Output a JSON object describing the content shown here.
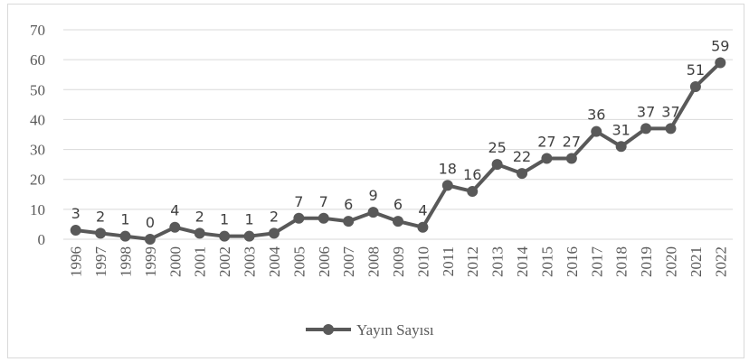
{
  "chart_data": {
    "type": "line",
    "categories": [
      "1996",
      "1997",
      "1998",
      "1999",
      "2000",
      "2001",
      "2002",
      "2003",
      "2004",
      "2005",
      "2006",
      "2007",
      "2008",
      "2009",
      "2010",
      "2011",
      "2012",
      "2013",
      "2014",
      "2015",
      "2016",
      "2017",
      "2018",
      "2019",
      "2020",
      "2021",
      "2022"
    ],
    "series": [
      {
        "name": "Yayın Sayısı",
        "color": "#595959",
        "values": [
          3,
          2,
          1,
          0,
          4,
          2,
          1,
          1,
          2,
          7,
          7,
          6,
          9,
          6,
          4,
          18,
          16,
          25,
          22,
          27,
          27,
          36,
          31,
          37,
          37,
          51,
          59
        ]
      }
    ],
    "ylim": [
      0,
      70
    ],
    "yticks": [
      0,
      10,
      20,
      30,
      40,
      50,
      60,
      70
    ],
    "grid": true,
    "legend": "bottom"
  }
}
